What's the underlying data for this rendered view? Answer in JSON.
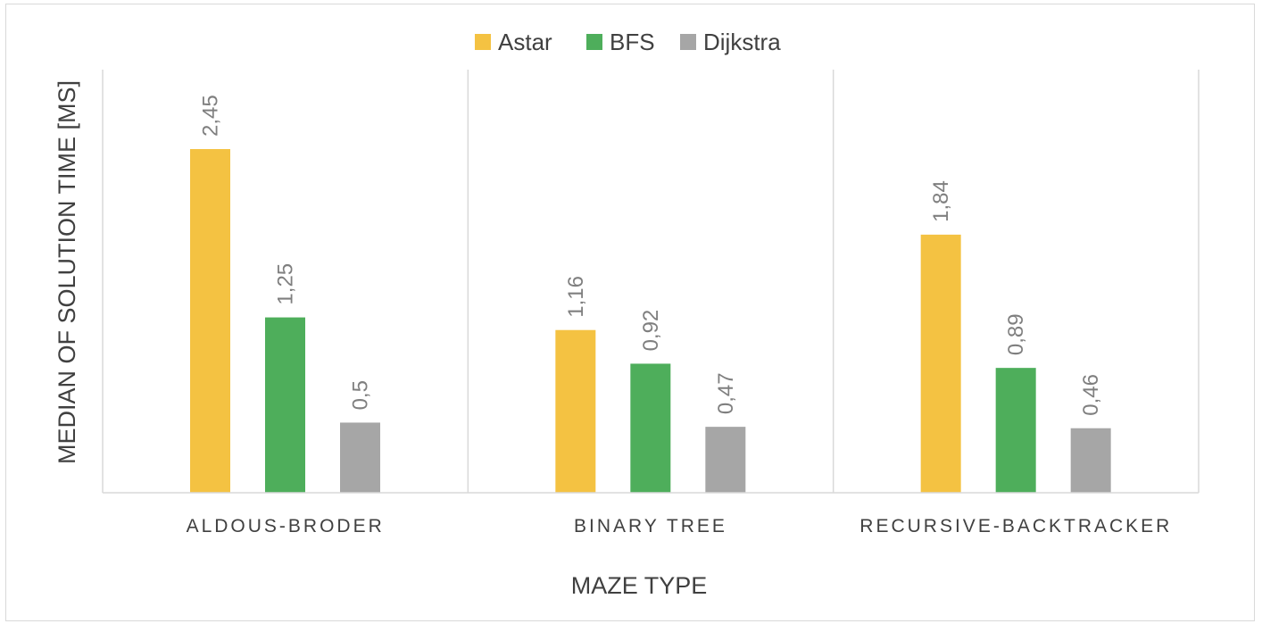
{
  "chart_data": {
    "type": "bar",
    "title": "",
    "xlabel": "MAZE TYPE",
    "ylabel": "MEDIAN OF SOLUTION TIME [MS]",
    "categories": [
      "ALDOUS-BRODER",
      "BINARY TREE",
      "RECURSIVE-BACKTRACKER"
    ],
    "series": [
      {
        "name": "Astar",
        "color": "#f4c242",
        "values": [
          2.45,
          1.16,
          1.84
        ],
        "labels": [
          "2,45",
          "1,16",
          "1,84"
        ]
      },
      {
        "name": "BFS",
        "color": "#4eae5b",
        "values": [
          1.25,
          0.92,
          0.89
        ],
        "labels": [
          "1,25",
          "0,92",
          "0,89"
        ]
      },
      {
        "name": "Dijkstra",
        "color": "#a6a6a6",
        "values": [
          0.5,
          0.47,
          0.46
        ],
        "labels": [
          "0,5",
          "0,47",
          "0,46"
        ]
      }
    ],
    "ylim": [
      0,
      2.5
    ],
    "grid": false,
    "legend": "top-center",
    "category_separators": true,
    "data_labels": "rotated-vertical"
  }
}
